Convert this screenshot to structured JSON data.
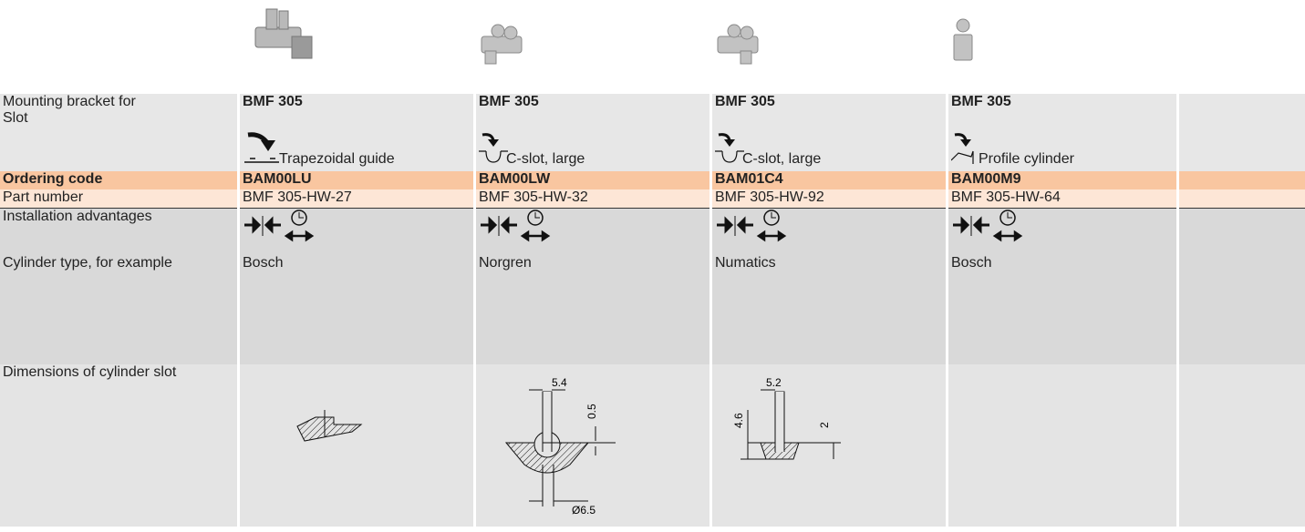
{
  "row_labels": [
    "Mounting bracket for",
    "Slot",
    "Ordering code",
    "Part number",
    "Installation advantages",
    "Cylinder type, for example",
    "Dimensions of cylinder slot"
  ],
  "products": [
    {
      "bracket": "BMF 305",
      "slot": "Trapezoidal guide",
      "ordering_code": "BAM00LU",
      "part_number": "BMF 305-HW-27",
      "cylinder_type": "Bosch"
    },
    {
      "bracket": "BMF 305",
      "slot": "C-slot, large",
      "ordering_code": "BAM00LW",
      "part_number": "BMF 305-HW-32",
      "cylinder_type": "Norgren",
      "dimension_labels": [
        "5.4",
        "0.5",
        "Ø6.5"
      ]
    },
    {
      "bracket": "BMF 305",
      "slot": "C-slot, large",
      "ordering_code": "BAM01C4",
      "part_number": "BMF 305-HW-92",
      "cylinder_type": "Numatics",
      "dimension_labels": [
        "5.2",
        "4.6",
        "2"
      ]
    },
    {
      "bracket": "BMF 305",
      "slot": "Profile cylinder",
      "ordering_code": "BAM00M9",
      "part_number": "BMF 305-HW-64",
      "cylinder_type": "Bosch"
    }
  ]
}
